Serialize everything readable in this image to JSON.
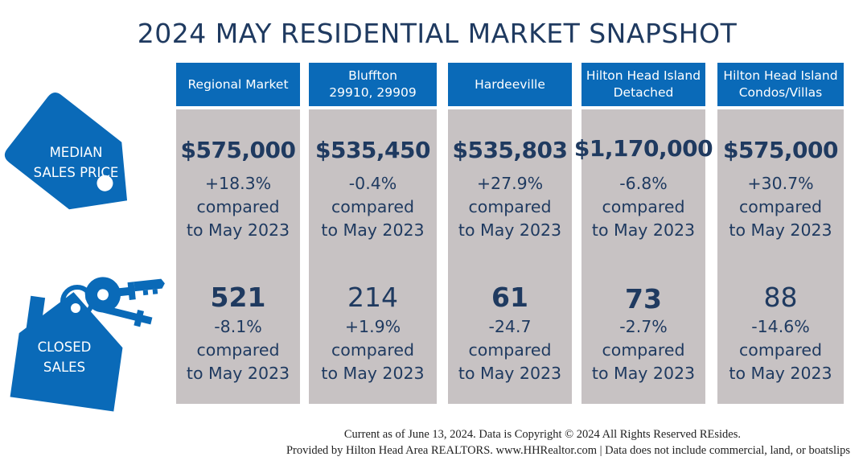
{
  "title": "2024 MAY RESIDENTIAL MARKET SNAPSHOT",
  "labels": {
    "median_line1": "MEDIAN",
    "median_line2": "SALES PRICE",
    "closed_line1": "CLOSED",
    "closed_line2": "SALES"
  },
  "markets": [
    {
      "name": "Regional Market",
      "price": "$575,000",
      "price_change": "+18.3%",
      "compared": "compared",
      "period": "to May 2023",
      "sales": "521",
      "sales_change": "-8.1%"
    },
    {
      "name": "Bluffton\n29910, 29909",
      "price": "$535,450",
      "price_change": "-0.4%",
      "compared": "compared",
      "period": "to May 2023",
      "sales": "214",
      "sales_change": "+1.9%"
    },
    {
      "name": "Hardeeville",
      "price": "$535,803",
      "price_change": "+27.9%",
      "compared": "compared",
      "period": "to May 2023",
      "sales": "61",
      "sales_change": "-24.7"
    },
    {
      "name": "Hilton Head Island\nDetached",
      "price": "$1,170,000",
      "price_change": "-6.8%",
      "compared": "compared",
      "period": "to May 2023",
      "sales": "73",
      "sales_change": "-2.7%"
    },
    {
      "name": "Hilton Head Island\nCondos/Villas",
      "price": "$575,000",
      "price_change": "+30.7%",
      "compared": "compared",
      "period": "to May 2023",
      "sales": "88",
      "sales_change": "-14.6%"
    }
  ],
  "footer": {
    "line1": "Current as of June 13, 2024. Data is Copyright © 2024  All Rights Reserved REsides.",
    "line2": "Provided by Hilton Head Area REALTORS.  www.HHRealtor.com | Data does not include commercial, land, or boatslips"
  },
  "colors": {
    "accent": "#0a6ab8",
    "panel": "#c7c2c3",
    "text": "#1f3a60"
  },
  "icons": [
    "price-tag-icon",
    "house-keys-icon"
  ]
}
